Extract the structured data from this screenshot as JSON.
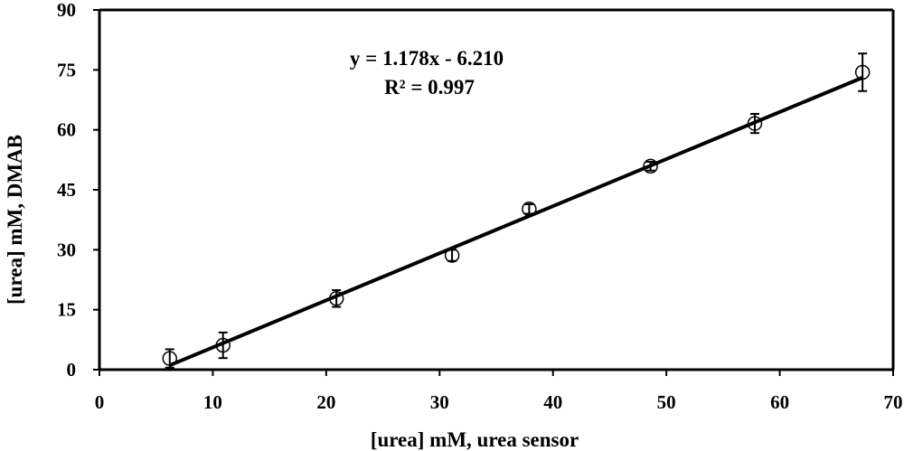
{
  "chart_data": {
    "type": "scatter",
    "title": "",
    "xlabel": "[urea] mM, urea sensor",
    "ylabel": "[urea] mM, DMAB",
    "xlim": [
      0,
      70
    ],
    "ylim": [
      0,
      90
    ],
    "xticks": [
      0,
      10,
      20,
      30,
      40,
      50,
      60,
      70
    ],
    "yticks": [
      0,
      15,
      30,
      45,
      60,
      75,
      90
    ],
    "xtick_labels": [
      "0",
      "10",
      "20",
      "30",
      "40",
      "50",
      "60",
      "70"
    ],
    "ytick_labels": [
      "0",
      "15",
      "30",
      "45",
      "60",
      "75",
      "90"
    ],
    "grid": false,
    "legend": "none",
    "points": [
      {
        "x": 6.2,
        "y": 2.8,
        "err": 2.3
      },
      {
        "x": 10.9,
        "y": 6.1,
        "err": 3.2
      },
      {
        "x": 20.9,
        "y": 17.8,
        "err": 2.1
      },
      {
        "x": 31.1,
        "y": 28.6,
        "err": 1.4
      },
      {
        "x": 37.9,
        "y": 40.2,
        "err": 1.2
      },
      {
        "x": 48.6,
        "y": 50.9,
        "err": 1.1
      },
      {
        "x": 57.8,
        "y": 61.6,
        "err": 2.4
      },
      {
        "x": 67.3,
        "y": 74.4,
        "err": 4.7
      }
    ],
    "trendline": {
      "slope": 1.178,
      "intercept": -6.21,
      "x_from": 6.2,
      "x_to": 67.3
    },
    "annotations": {
      "equation": "y = 1.178x - 6.210",
      "r_squared": "R² = 0.997"
    },
    "colors": {
      "marker": "#000000",
      "line": "#000000"
    }
  }
}
